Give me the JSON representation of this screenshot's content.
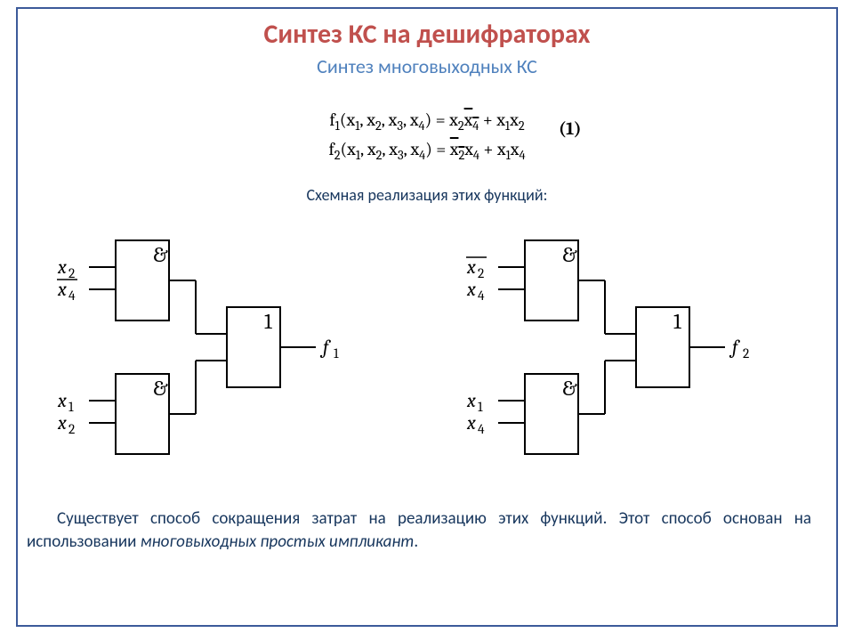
{
  "title": "Синтез КС на дешифраторах",
  "subtitle": "Синтез многовыходных КС",
  "formula": {
    "line1_left": "f",
    "line1_sub1": "1",
    "line1_args_open": "(x",
    "line1_a1": "1",
    "line1_sep": ", x",
    "line1_a2": "2",
    "line1_a3": "3",
    "line1_a4": "4",
    "line1_eq": ") = x",
    "line1_t1s": "2",
    "line1_t1x": "x",
    "line1_t1x_s": "4",
    "line1_plus": " + x",
    "line1_t2a": "1",
    "line1_t2x": "x",
    "line1_t2b": "2",
    "line2_left": "f",
    "line2_sub1": "2",
    "line2_args_open": "(x",
    "line2_a1": "1",
    "line2_sep": ", x",
    "line2_a2": "2",
    "line2_a3": "3",
    "line2_a4": "4",
    "line2_eq": ") = ",
    "line2_t1x": "x",
    "line2_t1s": "2",
    "line2_t1x2": "x",
    "line2_t1s2": "4",
    "line2_plus": " + x",
    "line2_t2a": "1",
    "line2_t2x": "x",
    "line2_t2b": "4",
    "ref": "(1)"
  },
  "caption": "Схемная реализация этих функций:",
  "diagram": {
    "gate_and": "&",
    "gate_or": "1",
    "left": {
      "g1_in1": "x",
      "g1_in1_sub": "2",
      "g1_in2_bar": "x",
      "g1_in2_sub": "4",
      "g2_in1": "x",
      "g2_in1_sub": "1",
      "g2_in2": "x",
      "g2_in2_sub": "2",
      "out": "f",
      "out_sub": "1"
    },
    "right": {
      "g1_in1_bar": "x",
      "g1_in1_sub": "2",
      "g1_in2": "x",
      "g1_in2_sub": "4",
      "g2_in1": "x",
      "g2_in1_sub": "1",
      "g2_in2": "x",
      "g2_in2_sub": "4",
      "out": "f",
      "out_sub": "2"
    },
    "stroke": "#000000",
    "stroke_width": 2,
    "gate_w": 60,
    "gate_h": 90,
    "or_w": 60,
    "or_h": 90,
    "font_size_label": 22,
    "font_size_gate": 24
  },
  "body": {
    "text1": "Существует способ сокращения затрат на реализацию этих функций. Этот способ основан на использовании ",
    "text2_italic": "многовыходных простых импликант",
    "text3": "."
  },
  "colors": {
    "frame": "#3c5a9a",
    "title": "#c0504d",
    "subtitle": "#4f81bd",
    "caption": "#17365d",
    "body": "#17365d",
    "bg": "#ffffff"
  }
}
